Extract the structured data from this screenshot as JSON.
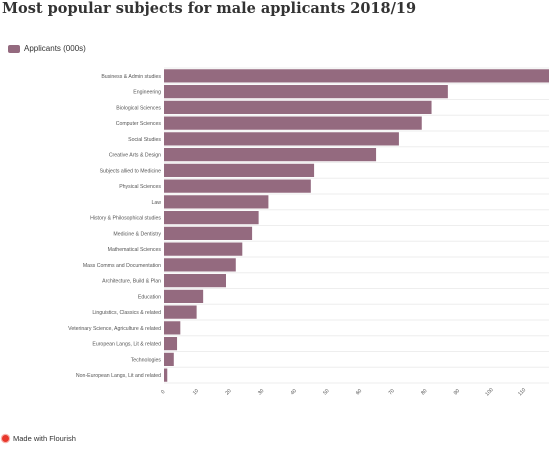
{
  "chart_data": {
    "type": "bar",
    "orientation": "horizontal",
    "title": "Most popular subjects for male applicants 2018/19",
    "series": [
      {
        "name": "Applicants (000s)",
        "color": "#946a7f"
      }
    ],
    "categories": [
      "Business & Admin studies",
      "Engineering",
      "Biological Sciences",
      "Computer Sciences",
      "Social Studies",
      "Creative Arts & Design",
      "Subjects allied to Medicine",
      "Physical Sciences",
      "Law",
      "History & Philosophical studies",
      "Medicine & Dentistry",
      "Mathematical Sciences",
      "Mass Comms and Documentation",
      "Architecture, Build & Plan",
      "Education",
      "Linguistics, Classics & related",
      "Veterinary Science, Agriculture & related",
      "European Langs, Lit & related",
      "Technologies",
      "Non-European Langs, Lit and related"
    ],
    "values": [
      118,
      87,
      82,
      79,
      72,
      65,
      46,
      45,
      32,
      29,
      27,
      24,
      22,
      19,
      12,
      10,
      5,
      4,
      3,
      1
    ],
    "xticks": [
      "0",
      "10",
      "20",
      "30",
      "40",
      "50",
      "60",
      "70",
      "80",
      "90",
      "100",
      "110"
    ],
    "xlim": [
      0,
      118
    ],
    "grid": true,
    "legend_position": "top-left"
  },
  "footer": {
    "label": "Made with Flourish"
  }
}
